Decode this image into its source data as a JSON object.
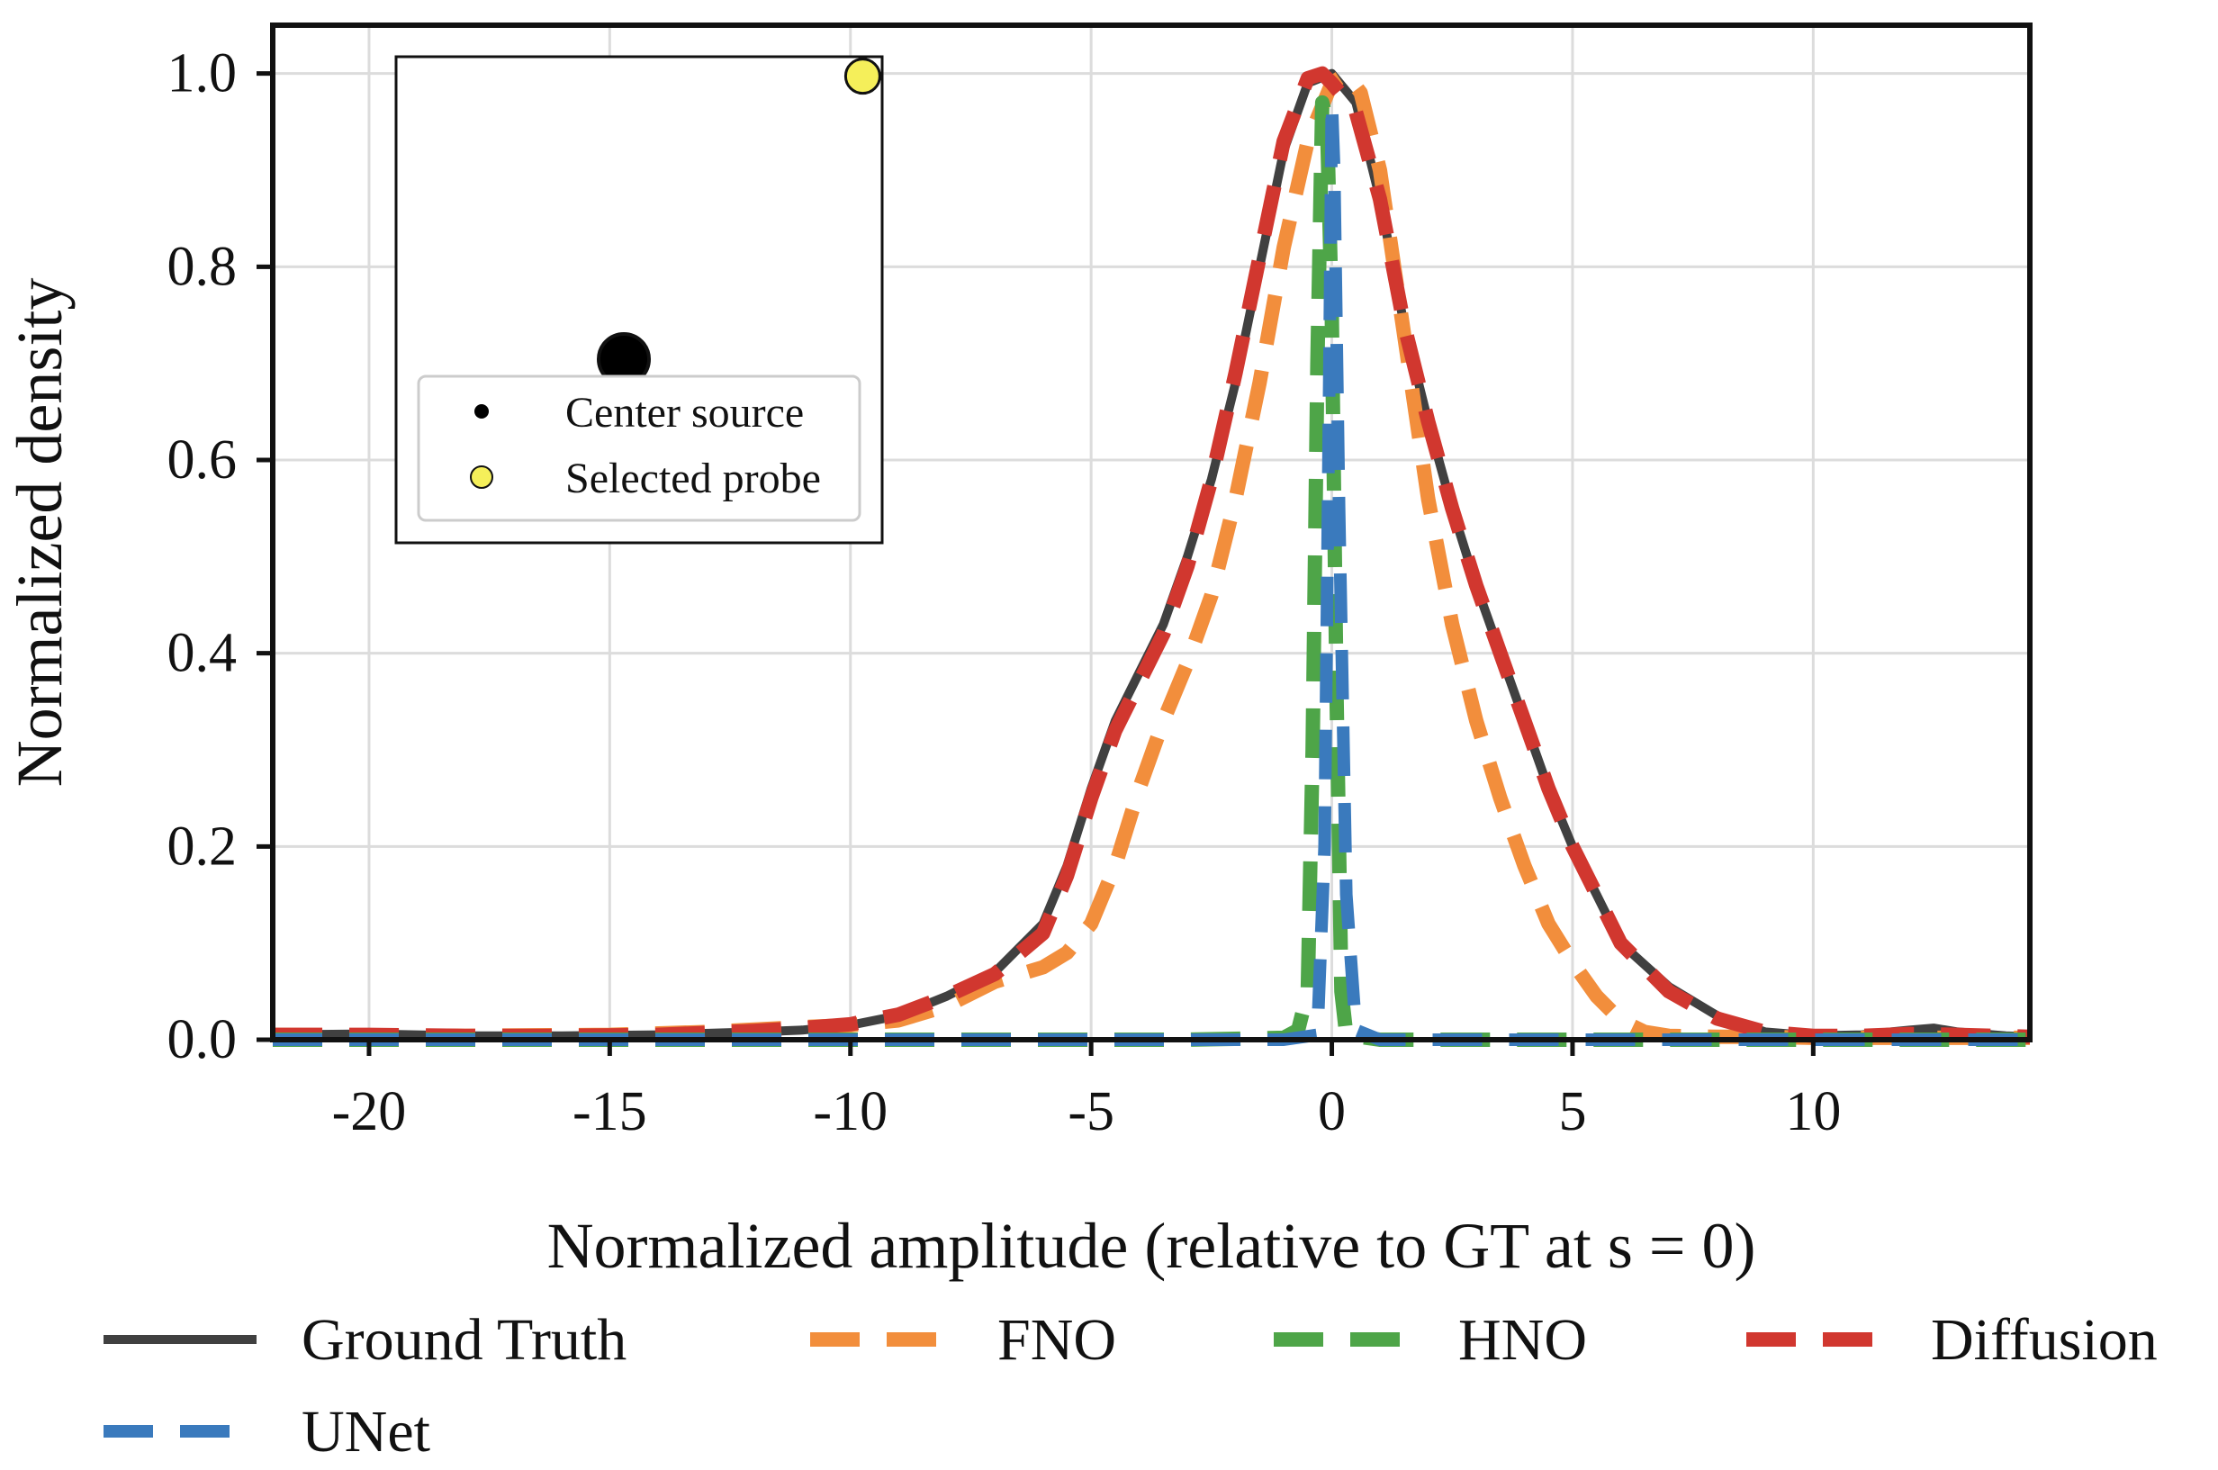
{
  "chart_data": {
    "type": "line",
    "title": "",
    "xlabel": "Normalized amplitude (relative to GT at s = 0)",
    "ylabel": "Normalized density",
    "xlim": [
      -22,
      14.5
    ],
    "ylim": [
      0,
      1.05
    ],
    "xticks": [
      -20,
      -15,
      -10,
      -5,
      0,
      5,
      10
    ],
    "xtick_labels": [
      "-20",
      "-15",
      "-10",
      "-5",
      "0",
      "5",
      "10"
    ],
    "yticks": [
      0.0,
      0.2,
      0.4,
      0.6,
      0.8,
      1.0
    ],
    "ytick_labels": [
      "0.0",
      "0.2",
      "0.4",
      "0.6",
      "0.8",
      "1.0"
    ],
    "grid": true,
    "legend_position": "bottom",
    "series": [
      {
        "name": "Ground Truth",
        "color": "#404040",
        "style": "solid",
        "x": [
          -22,
          -20,
          -18,
          -16,
          -14,
          -12,
          -11,
          -10,
          -9,
          -8,
          -7,
          -6,
          -5.5,
          -5,
          -4.5,
          -4,
          -3.5,
          -3,
          -2.5,
          -2,
          -1.5,
          -1,
          -0.5,
          0,
          0.5,
          1,
          1.5,
          2,
          2.5,
          3,
          3.5,
          4,
          4.5,
          5,
          5.5,
          6,
          7,
          8,
          9,
          10,
          11,
          12,
          12.5,
          13,
          14,
          14.5
        ],
        "y": [
          0.005,
          0.006,
          0.004,
          0.004,
          0.005,
          0.008,
          0.01,
          0.015,
          0.025,
          0.045,
          0.07,
          0.12,
          0.18,
          0.26,
          0.33,
          0.38,
          0.43,
          0.5,
          0.58,
          0.68,
          0.8,
          0.92,
          0.99,
          1.0,
          0.97,
          0.87,
          0.74,
          0.64,
          0.55,
          0.47,
          0.4,
          0.33,
          0.26,
          0.2,
          0.15,
          0.1,
          0.055,
          0.025,
          0.008,
          0.004,
          0.005,
          0.01,
          0.012,
          0.008,
          0.004,
          0.003
        ]
      },
      {
        "name": "FNO",
        "color": "#f28e3c",
        "style": "dashed",
        "x": [
          -22,
          -18,
          -15,
          -13,
          -11,
          -10,
          -9,
          -8,
          -7,
          -6,
          -5.5,
          -5,
          -4.5,
          -4,
          -3.5,
          -3,
          -2.5,
          -2,
          -1.5,
          -1,
          -0.5,
          0,
          0.3,
          0.6,
          1,
          1.5,
          2,
          2.5,
          3,
          3.5,
          4,
          4.5,
          5,
          5.5,
          6,
          6.5,
          7,
          8,
          9,
          10,
          12,
          14.5
        ],
        "y": [
          0.005,
          0.004,
          0.005,
          0.008,
          0.013,
          0.015,
          0.02,
          0.035,
          0.06,
          0.075,
          0.09,
          0.12,
          0.18,
          0.26,
          0.33,
          0.39,
          0.46,
          0.56,
          0.68,
          0.82,
          0.93,
          0.99,
          1.0,
          0.98,
          0.9,
          0.73,
          0.56,
          0.43,
          0.33,
          0.25,
          0.18,
          0.12,
          0.08,
          0.045,
          0.02,
          0.008,
          0.004,
          0.003,
          0.003,
          0.002,
          0.002,
          0.002
        ]
      },
      {
        "name": "HNO",
        "color": "#4ea548",
        "style": "dashed",
        "x": [
          -22,
          -8,
          -3,
          -1,
          -0.7,
          -0.5,
          -0.4,
          -0.3,
          -0.2,
          -0.1,
          0.0,
          0.1,
          0.2,
          0.3,
          1,
          3,
          8,
          14.5
        ],
        "y": [
          0.0,
          0.0,
          0.0,
          0.002,
          0.01,
          0.05,
          0.3,
          0.7,
          0.97,
          0.95,
          0.75,
          0.35,
          0.05,
          0.005,
          0.0,
          0.0,
          0.0,
          0.0
        ]
      },
      {
        "name": "Diffusion",
        "color": "#d1372f",
        "style": "dashed",
        "x": [
          -22,
          -20,
          -18,
          -16,
          -14,
          -12,
          -11,
          -10,
          -9,
          -8,
          -7,
          -6,
          -5.5,
          -5,
          -4.5,
          -4,
          -3.5,
          -3,
          -2.5,
          -2,
          -1.5,
          -1,
          -0.5,
          -0.2,
          0,
          0.5,
          1,
          1.5,
          2,
          2.5,
          3,
          3.5,
          4,
          4.5,
          5,
          5.5,
          6,
          7,
          8,
          9,
          10,
          11,
          12,
          13,
          14.5
        ],
        "y": [
          0.005,
          0.005,
          0.004,
          0.004,
          0.005,
          0.009,
          0.012,
          0.016,
          0.026,
          0.045,
          0.068,
          0.11,
          0.17,
          0.25,
          0.32,
          0.37,
          0.42,
          0.49,
          0.58,
          0.69,
          0.81,
          0.93,
          0.995,
          1.0,
          0.99,
          0.96,
          0.87,
          0.74,
          0.64,
          0.55,
          0.47,
          0.4,
          0.33,
          0.26,
          0.2,
          0.15,
          0.1,
          0.05,
          0.022,
          0.008,
          0.004,
          0.004,
          0.006,
          0.005,
          0.003
        ]
      },
      {
        "name": "UNet",
        "color": "#3a7abd",
        "style": "dashed",
        "x": [
          -22,
          -5,
          -1,
          -0.3,
          -0.15,
          -0.05,
          0.0,
          0.05,
          0.15,
          0.3,
          0.5,
          1,
          5,
          14.5
        ],
        "y": [
          0.0,
          0.0,
          0.0,
          0.005,
          0.2,
          0.7,
          0.97,
          0.9,
          0.55,
          0.15,
          0.01,
          0.0,
          0.0,
          0.0
        ]
      }
    ],
    "inset": {
      "points": [
        {
          "label": "Center source",
          "color": "#000000",
          "x": 0.5,
          "y": 0.5
        },
        {
          "label": "Selected probe",
          "color": "#f5ef5a",
          "x": 0.96,
          "y": 0.96
        }
      ]
    }
  }
}
